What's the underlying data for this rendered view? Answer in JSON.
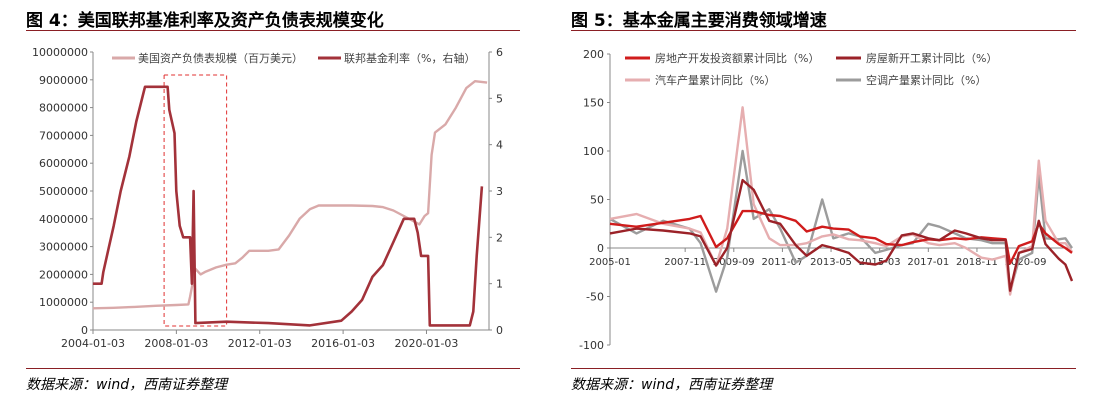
{
  "left": {
    "title": "图 4：美国联邦基准利率及资产负债表规模变化",
    "source": "数据来源：wind，西南证券整理"
  },
  "right": {
    "title": "图 5：基本金属主要消费领域增速",
    "source": "数据来源：wind，西南证券整理"
  },
  "chart_data": [
    {
      "type": "line",
      "title": "",
      "x_tick_labels": [
        "2004-01-03",
        "2008-01-03",
        "2012-01-03",
        "2016-01-03",
        "2020-01-03"
      ],
      "x_range": [
        "2004-01-03",
        "2023-01-03"
      ],
      "y_left": {
        "range": [
          0,
          10000000
        ],
        "tick_labels": [
          "0",
          "1000000",
          "2000000",
          "3000000",
          "4000000",
          "5000000",
          "6000000",
          "7000000",
          "8000000",
          "9000000",
          "10000000"
        ]
      },
      "y_right": {
        "range": [
          0,
          6
        ],
        "tick_labels": [
          "0",
          "1",
          "2",
          "3",
          "4",
          "5",
          "6"
        ]
      },
      "legend_position": "top",
      "annotation": "red dashed box around 2007-06 to 2010-06",
      "colors": {
        "balance": "#d9a9a9",
        "rate": "#a3323a",
        "box": "#e03030"
      },
      "series": [
        {
          "name": "美国资产负债表规模（百万美元）",
          "axis": "left",
          "points": [
            [
              "2004-01",
              780000
            ],
            [
              "2005-01",
              800000
            ],
            [
              "2006-01",
              830000
            ],
            [
              "2007-01",
              870000
            ],
            [
              "2008-01",
              900000
            ],
            [
              "2008-08",
              920000
            ],
            [
              "2008-09",
              1200000
            ],
            [
              "2008-12",
              2200000
            ],
            [
              "2009-03",
              2000000
            ],
            [
              "2009-06",
              2100000
            ],
            [
              "2009-12",
              2250000
            ],
            [
              "2010-06",
              2350000
            ],
            [
              "2010-11",
              2400000
            ],
            [
              "2011-03",
              2600000
            ],
            [
              "2011-07",
              2850000
            ],
            [
              "2012-06",
              2850000
            ],
            [
              "2012-12",
              2900000
            ],
            [
              "2013-06",
              3400000
            ],
            [
              "2013-12",
              4000000
            ],
            [
              "2014-06",
              4350000
            ],
            [
              "2014-11",
              4480000
            ],
            [
              "2015-06",
              4480000
            ],
            [
              "2016-06",
              4480000
            ],
            [
              "2017-06",
              4460000
            ],
            [
              "2017-12",
              4420000
            ],
            [
              "2018-06",
              4300000
            ],
            [
              "2018-12",
              4100000
            ],
            [
              "2019-06",
              3900000
            ],
            [
              "2019-09",
              3800000
            ],
            [
              "2019-12",
              4100000
            ],
            [
              "2020-02",
              4200000
            ],
            [
              "2020-04",
              6300000
            ],
            [
              "2020-06",
              7100000
            ],
            [
              "2020-12",
              7400000
            ],
            [
              "2021-06",
              8000000
            ],
            [
              "2021-12",
              8700000
            ],
            [
              "2022-05",
              8950000
            ],
            [
              "2022-12",
              8900000
            ]
          ]
        },
        {
          "name": "联邦基金利率（%，右轴）",
          "axis": "right",
          "points": [
            [
              "2004-01",
              1.0
            ],
            [
              "2004-06",
              1.0
            ],
            [
              "2004-07",
              1.25
            ],
            [
              "2004-10",
              1.75
            ],
            [
              "2005-01",
              2.25
            ],
            [
              "2005-05",
              3.0
            ],
            [
              "2005-10",
              3.75
            ],
            [
              "2006-02",
              4.5
            ],
            [
              "2006-07",
              5.25
            ],
            [
              "2007-08",
              5.25
            ],
            [
              "2007-09",
              4.75
            ],
            [
              "2007-12",
              4.25
            ],
            [
              "2008-01",
              3.0
            ],
            [
              "2008-03",
              2.25
            ],
            [
              "2008-05",
              2.0
            ],
            [
              "2008-09",
              2.0
            ],
            [
              "2008-10",
              1.0
            ],
            [
              "2008-11",
              3.0
            ],
            [
              "2008-12",
              0.15
            ],
            [
              "2010-06",
              0.18
            ],
            [
              "2012-06",
              0.15
            ],
            [
              "2014-06",
              0.1
            ],
            [
              "2015-12",
              0.2
            ],
            [
              "2016-06",
              0.4
            ],
            [
              "2016-12",
              0.65
            ],
            [
              "2017-06",
              1.15
            ],
            [
              "2017-12",
              1.4
            ],
            [
              "2018-06",
              1.9
            ],
            [
              "2018-12",
              2.4
            ],
            [
              "2019-06",
              2.4
            ],
            [
              "2019-08",
              2.1
            ],
            [
              "2019-10",
              1.6
            ],
            [
              "2020-02",
              1.6
            ],
            [
              "2020-03",
              0.1
            ],
            [
              "2021-06",
              0.1
            ],
            [
              "2022-02",
              0.1
            ],
            [
              "2022-04",
              0.4
            ],
            [
              "2022-06",
              1.6
            ],
            [
              "2022-09",
              3.1
            ]
          ]
        }
      ]
    },
    {
      "type": "line",
      "title": "",
      "x_tick_labels": [
        "2005-01",
        "2007-11",
        "2009-09",
        "2011-07",
        "2013-05",
        "2015-03",
        "2017-01",
        "2018-11",
        "2020-09"
      ],
      "x_range": [
        "2005-01",
        "2022-06"
      ],
      "ylim": [
        -100,
        200
      ],
      "y_tick_labels": [
        "-100",
        "-50",
        "0",
        "50",
        "100",
        "150",
        "200"
      ],
      "legend_position": "top",
      "grid": false,
      "series": [
        {
          "name": "房地产开发投资额累计同比（%）",
          "color": "#d01c1c",
          "points": [
            [
              "2005-01",
              25
            ],
            [
              "2006-01",
              22
            ],
            [
              "2007-01",
              26
            ],
            [
              "2008-01",
              30
            ],
            [
              "2008-06",
              33
            ],
            [
              "2009-01",
              1
            ],
            [
              "2009-06",
              10
            ],
            [
              "2010-01",
              38
            ],
            [
              "2010-06",
              38
            ],
            [
              "2011-01",
              34
            ],
            [
              "2011-06",
              33
            ],
            [
              "2012-01",
              28
            ],
            [
              "2012-06",
              17
            ],
            [
              "2013-01",
              22
            ],
            [
              "2013-06",
              20
            ],
            [
              "2014-01",
              19
            ],
            [
              "2014-06",
              12
            ],
            [
              "2015-01",
              10
            ],
            [
              "2015-06",
              4
            ],
            [
              "2016-01",
              3
            ],
            [
              "2016-06",
              6
            ],
            [
              "2017-01",
              9
            ],
            [
              "2017-06",
              8
            ],
            [
              "2018-01",
              10
            ],
            [
              "2018-06",
              9
            ],
            [
              "2019-01",
              11
            ],
            [
              "2019-06",
              10
            ],
            [
              "2019-12",
              9
            ],
            [
              "2020-02",
              -16
            ],
            [
              "2020-06",
              2
            ],
            [
              "2020-12",
              7
            ],
            [
              "2021-03",
              25
            ],
            [
              "2021-06",
              15
            ],
            [
              "2021-12",
              4
            ],
            [
              "2022-03",
              0
            ],
            [
              "2022-06",
              -5
            ]
          ]
        },
        {
          "name": "房屋新开工累计同比（%）",
          "color": "#9b2228",
          "points": [
            [
              "2005-01",
              15
            ],
            [
              "2006-01",
              20
            ],
            [
              "2007-01",
              18
            ],
            [
              "2008-01",
              15
            ],
            [
              "2008-06",
              12
            ],
            [
              "2009-01",
              -18
            ],
            [
              "2009-06",
              0
            ],
            [
              "2010-01",
              70
            ],
            [
              "2010-06",
              60
            ],
            [
              "2011-01",
              28
            ],
            [
              "2011-06",
              25
            ],
            [
              "2012-01",
              3
            ],
            [
              "2012-06",
              -8
            ],
            [
              "2013-01",
              3
            ],
            [
              "2013-06",
              0
            ],
            [
              "2014-01",
              -5
            ],
            [
              "2014-06",
              -15
            ],
            [
              "2015-01",
              -17
            ],
            [
              "2015-06",
              -13
            ],
            [
              "2016-01",
              13
            ],
            [
              "2016-06",
              15
            ],
            [
              "2017-01",
              10
            ],
            [
              "2017-06",
              8
            ],
            [
              "2018-01",
              18
            ],
            [
              "2018-06",
              15
            ],
            [
              "2019-01",
              10
            ],
            [
              "2019-06",
              8
            ],
            [
              "2019-12",
              8
            ],
            [
              "2020-02",
              -44
            ],
            [
              "2020-06",
              -5
            ],
            [
              "2020-12",
              -1
            ],
            [
              "2021-03",
              28
            ],
            [
              "2021-06",
              4
            ],
            [
              "2021-12",
              -11
            ],
            [
              "2022-03",
              -17
            ],
            [
              "2022-06",
              -34
            ]
          ]
        },
        {
          "name": "汽车产量累计同比（%）",
          "color": "#e6aeb0",
          "points": [
            [
              "2005-01",
              30
            ],
            [
              "2006-01",
              35
            ],
            [
              "2007-01",
              25
            ],
            [
              "2008-01",
              20
            ],
            [
              "2008-06",
              16
            ],
            [
              "2009-01",
              -18
            ],
            [
              "2009-06",
              20
            ],
            [
              "2010-01",
              145
            ],
            [
              "2010-06",
              45
            ],
            [
              "2011-01",
              10
            ],
            [
              "2011-06",
              3
            ],
            [
              "2012-01",
              3
            ],
            [
              "2012-06",
              5
            ],
            [
              "2013-01",
              12
            ],
            [
              "2013-06",
              14
            ],
            [
              "2014-01",
              9
            ],
            [
              "2014-06",
              8
            ],
            [
              "2015-01",
              5
            ],
            [
              "2015-06",
              2
            ],
            [
              "2016-01",
              12
            ],
            [
              "2016-06",
              14
            ],
            [
              "2017-01",
              5
            ],
            [
              "2017-06",
              3
            ],
            [
              "2018-01",
              5
            ],
            [
              "2018-06",
              0
            ],
            [
              "2019-01",
              -10
            ],
            [
              "2019-06",
              -12
            ],
            [
              "2019-12",
              -8
            ],
            [
              "2020-02",
              -48
            ],
            [
              "2020-06",
              -5
            ],
            [
              "2020-12",
              2
            ],
            [
              "2021-03",
              90
            ],
            [
              "2021-06",
              28
            ],
            [
              "2021-12",
              5
            ],
            [
              "2022-03",
              5
            ],
            [
              "2022-06",
              -4
            ]
          ]
        },
        {
          "name": "空调产量累计同比（%）",
          "color": "#9c9c9c",
          "points": [
            [
              "2005-01",
              30
            ],
            [
              "2006-01",
              15
            ],
            [
              "2007-01",
              28
            ],
            [
              "2008-01",
              20
            ],
            [
              "2008-06",
              5
            ],
            [
              "2009-01",
              -45
            ],
            [
              "2009-06",
              -10
            ],
            [
              "2010-01",
              100
            ],
            [
              "2010-06",
              30
            ],
            [
              "2011-01",
              40
            ],
            [
              "2011-06",
              20
            ],
            [
              "2012-01",
              -15
            ],
            [
              "2012-06",
              -8
            ],
            [
              "2013-01",
              50
            ],
            [
              "2013-06",
              10
            ],
            [
              "2014-01",
              15
            ],
            [
              "2014-06",
              12
            ],
            [
              "2015-01",
              -5
            ],
            [
              "2015-06",
              -2
            ],
            [
              "2016-01",
              3
            ],
            [
              "2016-06",
              5
            ],
            [
              "2017-01",
              25
            ],
            [
              "2017-06",
              22
            ],
            [
              "2018-01",
              15
            ],
            [
              "2018-06",
              10
            ],
            [
              "2019-01",
              8
            ],
            [
              "2019-06",
              5
            ],
            [
              "2019-12",
              5
            ],
            [
              "2020-02",
              -45
            ],
            [
              "2020-06",
              -12
            ],
            [
              "2020-12",
              -5
            ],
            [
              "2021-03",
              75
            ],
            [
              "2021-06",
              10
            ],
            [
              "2021-12",
              9
            ],
            [
              "2022-03",
              10
            ],
            [
              "2022-06",
              0
            ]
          ]
        }
      ]
    }
  ]
}
